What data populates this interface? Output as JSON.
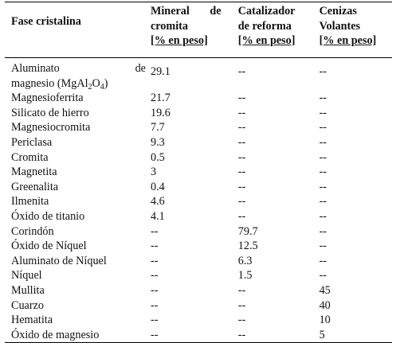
{
  "table": {
    "headers": {
      "phase": "Fase cristalina",
      "col1_line1": "Mineral de",
      "col1_line2": "cromita",
      "col1_unit": "[% en peso]",
      "col2_line1": "Catalizador",
      "col2_line2": "de reforma",
      "col2_unit": "[% en peso]",
      "col3_line1": "Cenizas",
      "col3_line2": "Volantes",
      "col3_unit": "[% en peso]"
    },
    "first_row": {
      "phase_line1_a": "Aluminato",
      "phase_line1_b": "de",
      "phase_line2_pre": "magnesio (MgAl",
      "sub1": "2",
      "mid": "O",
      "sub2": "4",
      "post": ")",
      "col1": "29.1",
      "col2": "--",
      "col3": "--"
    },
    "rows": [
      {
        "phase": "Magnesioferrita",
        "c1": "21.7",
        "c2": "--",
        "c3": "--"
      },
      {
        "phase": "Silicato de hierro",
        "c1": "19.6",
        "c2": "--",
        "c3": "--"
      },
      {
        "phase": "Magnesiocromita",
        "c1": "7.7",
        "c2": "--",
        "c3": "--"
      },
      {
        "phase": "Periclasa",
        "c1": "9.3",
        "c2": "--",
        "c3": "--"
      },
      {
        "phase": "Cromita",
        "c1": "0.5",
        "c2": "--",
        "c3": "--"
      },
      {
        "phase": "Magnetita",
        "c1": "3",
        "c2": "--",
        "c3": "--"
      },
      {
        "phase": "Greenalita",
        "c1": "0.4",
        "c2": "--",
        "c3": "--"
      },
      {
        "phase": "Ilmenita",
        "c1": "4.6",
        "c2": "--",
        "c3": "--"
      },
      {
        "phase": "Óxido de titanio",
        "c1": "4.1",
        "c2": "--",
        "c3": "--"
      },
      {
        "phase": "Corindón",
        "c1": "--",
        "c2": "79.7",
        "c3": "--"
      },
      {
        "phase": "Óxido de Níquel",
        "c1": "--",
        "c2": "12.5",
        "c3": "--"
      },
      {
        "phase": "Aluminato de Níquel",
        "c1": "--",
        "c2": "6.3",
        "c3": "--"
      },
      {
        "phase": "Níquel",
        "c1": "--",
        "c2": "1.5",
        "c3": "--"
      },
      {
        "phase": "Mullita",
        "c1": "--",
        "c2": "--",
        "c3": "45"
      },
      {
        "phase": "Cuarzo",
        "c1": "--",
        "c2": "--",
        "c3": "40"
      },
      {
        "phase": "Hematita",
        "c1": "--",
        "c2": "--",
        "c3": "10"
      },
      {
        "phase": "Óxido de magnesio",
        "c1": "--",
        "c2": "--",
        "c3": "5"
      }
    ]
  }
}
